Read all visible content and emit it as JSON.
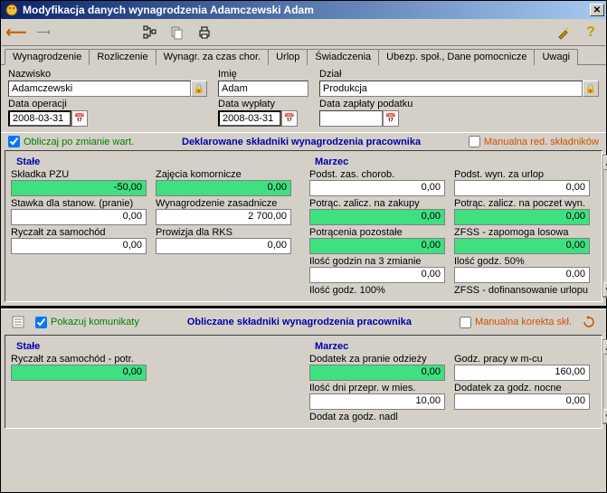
{
  "window": {
    "title": "Modyfikacja danych wynagrodzenia Adamczewski Adam"
  },
  "tabs": [
    {
      "label": "Wynagrodzenie",
      "active": true
    },
    {
      "label": "Rozliczenie"
    },
    {
      "label": "Wynagr. za czas chor."
    },
    {
      "label": "Urlop"
    },
    {
      "label": "Świadczenia"
    },
    {
      "label": "Ubezp. społ., Dane pomocnicze"
    },
    {
      "label": "Uwagi"
    }
  ],
  "header": {
    "nazwisko_lbl": "Nazwisko",
    "nazwisko": "Adamczewski",
    "imie_lbl": "Imię",
    "imie": "Adam",
    "dzial_lbl": "Dział",
    "dzial": "Produkcja",
    "dataop_lbl": "Data operacji",
    "dataop": "2008-03-31",
    "datawyp_lbl": "Data wypłaty",
    "datawyp": "2008-03-31",
    "datazap_lbl": "Data zapłaty podatku",
    "datazap": ""
  },
  "mid": {
    "oblicz_lbl": "Obliczaj po zmianie wart.",
    "dekl": "Deklarowane składniki wynagrodzenia pracownika",
    "manred_lbl": "Manualna red. składników"
  },
  "stale_hdr": "Stałe",
  "marzec_hdr": "Marzec",
  "stale_left": [
    {
      "lbl": "Składka PZU",
      "val": "-50,00",
      "c": "green"
    },
    {
      "lbl": "Stawka dla stanow. (pranie)",
      "val": "0,00",
      "c": "white"
    },
    {
      "lbl": "Ryczałt za samochód",
      "val": "0,00",
      "c": "white"
    }
  ],
  "stale_right": [
    {
      "lbl": "Zajęcia komornicze",
      "val": "0,00",
      "c": "green"
    },
    {
      "lbl": "Wynagrodzenie zasadnicze",
      "val": "2 700,00",
      "c": "white"
    },
    {
      "lbl": "Prowizja dla RKS",
      "val": "0,00",
      "c": "white"
    }
  ],
  "marzec_left": [
    {
      "lbl": "Podst. zas. chorob.",
      "val": "0,00",
      "c": "white"
    },
    {
      "lbl": "Potrąc. zalicz. na zakupy",
      "val": "0,00",
      "c": "green"
    },
    {
      "lbl": "Potrącenia pozostałe",
      "val": "0,00",
      "c": "green"
    },
    {
      "lbl": "Ilość godzin na 3 zmianie",
      "val": "0,00",
      "c": "white"
    },
    {
      "lbl": "Ilość godz. 100%",
      "val": "",
      "c": "none"
    }
  ],
  "marzec_right": [
    {
      "lbl": "Podst. wyn. za urlop",
      "val": "0,00",
      "c": "white"
    },
    {
      "lbl": "Potrąc. zalicz. na poczet wyn.",
      "val": "0,00",
      "c": "green"
    },
    {
      "lbl": "ZFŚS - zapomoga losowa",
      "val": "0,00",
      "c": "green"
    },
    {
      "lbl": "Ilość godz. 50%",
      "val": "0,00",
      "c": "white"
    },
    {
      "lbl": "ZFŚS - dofinansowanie urlopu",
      "val": "",
      "c": "none"
    }
  ],
  "mid2": {
    "pokazuj_lbl": "Pokazuj komunikaty",
    "obl": "Obliczane składniki wynagrodzenia pracownika",
    "mankor_lbl": "Manualna korekta skł."
  },
  "stale2_left": [
    {
      "lbl": "Ryczałt za samochód - potr.",
      "val": "0,00",
      "c": "green"
    }
  ],
  "marzec2_left": [
    {
      "lbl": "Dodatek za pranie odzieży",
      "val": "0,00",
      "c": "green"
    },
    {
      "lbl": "Ilość dni przepr. w mies.",
      "val": "10,00",
      "c": "white"
    },
    {
      "lbl": "Dodat za godz. nadl",
      "val": "",
      "c": "none"
    }
  ],
  "marzec2_right": [
    {
      "lbl": "Godz. pracy w m-cu",
      "val": "160,00",
      "c": "white"
    },
    {
      "lbl": "Dodatek za godz. nocne",
      "val": "0,00",
      "c": "white"
    }
  ]
}
